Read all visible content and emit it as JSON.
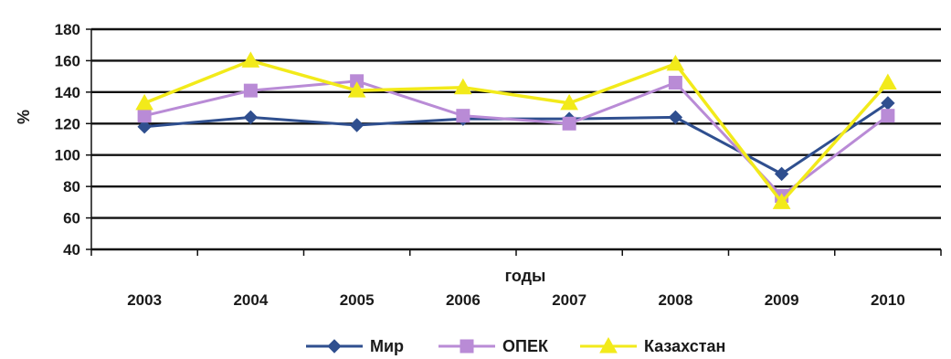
{
  "chart_data": {
    "type": "line",
    "title": "",
    "xlabel": "годы",
    "ylabel": "%",
    "ylim": [
      40,
      180
    ],
    "yticks": [
      40,
      60,
      80,
      100,
      120,
      140,
      160,
      180
    ],
    "categories": [
      "2003",
      "2004",
      "2005",
      "2006",
      "2007",
      "2008",
      "2009",
      "2010"
    ],
    "grid": true,
    "legend_position": "bottom",
    "series": [
      {
        "name": "Мир",
        "color": "#2f4f8f",
        "marker": "diamond",
        "values": [
          118,
          124,
          119,
          123,
          123,
          124,
          88,
          133
        ]
      },
      {
        "name": "ОПЕК",
        "color": "#b98bd6",
        "marker": "square",
        "values": [
          125,
          141,
          147,
          125,
          120,
          146,
          74,
          125
        ]
      },
      {
        "name": "Казахстан",
        "color": "#f2ea1a",
        "marker": "triangle",
        "values": [
          133,
          160,
          141,
          143,
          133,
          158,
          70,
          146
        ]
      }
    ]
  }
}
